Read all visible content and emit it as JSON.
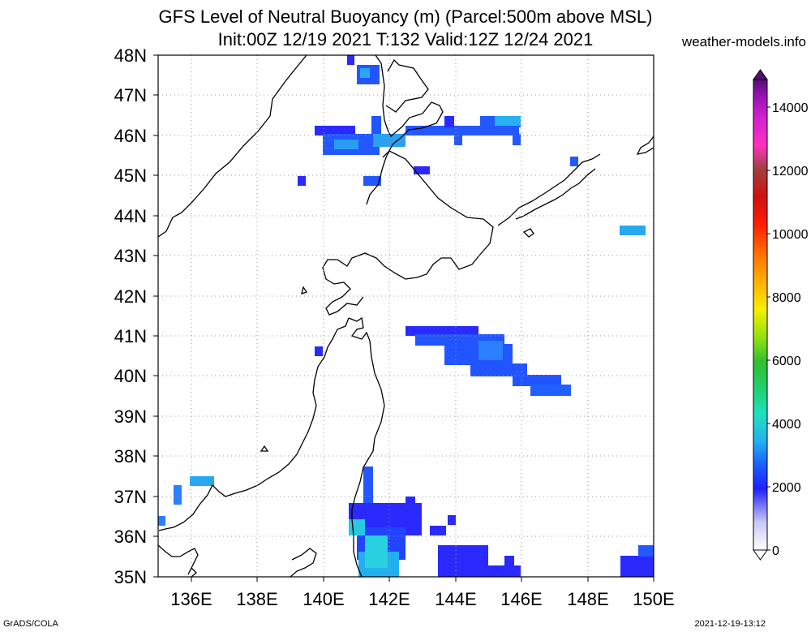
{
  "header": {
    "title_line1": "GFS Level of Neutral Buoyancy (m) (Parcel:500m above MSL)",
    "title_line2": "Init:00Z 12/19 2021 T:132 Valid:12Z 12/24 2021",
    "site": "weather-models.info"
  },
  "map": {
    "lon_labels": [
      "136E",
      "138E",
      "140E",
      "142E",
      "144E",
      "146E",
      "148E",
      "150E"
    ],
    "lat_labels": [
      "35N",
      "36N",
      "37N",
      "38N",
      "39N",
      "40N",
      "41N",
      "42N",
      "43N",
      "44N",
      "45N",
      "46N",
      "47N",
      "48N"
    ]
  },
  "colorbar": {
    "labels": [
      "0",
      "2000",
      "4000",
      "6000",
      "8000",
      "10000",
      "12000",
      "14000"
    ]
  },
  "footer": {
    "left": "GrADS/COLA",
    "right": "2021-12-19-13:12"
  }
}
